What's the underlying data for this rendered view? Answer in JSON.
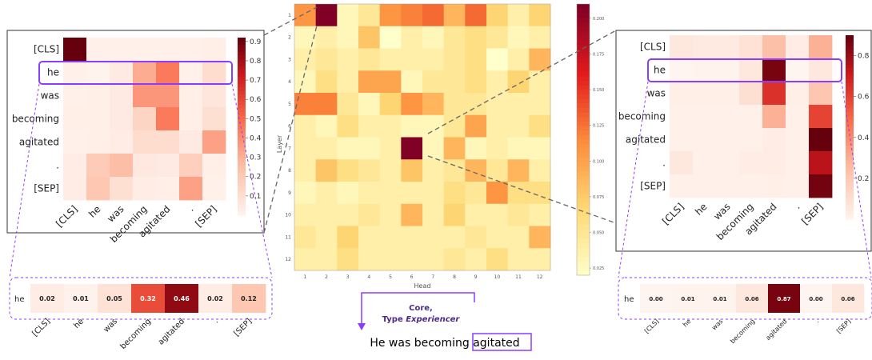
{
  "chart_data": [
    {
      "type": "heatmap",
      "xlabel": "Head",
      "ylabel": "Layer",
      "x_ticks": [
        "1",
        "2",
        "3",
        "4",
        "5",
        "6",
        "7",
        "8",
        "9",
        "10",
        "11",
        "12"
      ],
      "y_ticks": [
        "1",
        "2",
        "3",
        "4",
        "5",
        "6",
        "7",
        "8",
        "9",
        "10",
        "11",
        "12"
      ],
      "colorbar_ticks": [
        0.025,
        0.05,
        0.075,
        0.1,
        0.125,
        0.15,
        0.175,
        0.2
      ],
      "colorbar_labels": [
        "0.025",
        "0.050",
        "0.075",
        "0.100",
        "0.125",
        "0.150",
        "0.175",
        "0.200"
      ],
      "vmin": 0.02,
      "vmax": 0.21,
      "values": [
        [
          0.11,
          0.21,
          0.03,
          0.05,
          0.11,
          0.12,
          0.13,
          0.09,
          0.13,
          0.07,
          0.04,
          0.07
        ],
        [
          0.03,
          0.04,
          0.03,
          0.08,
          0.02,
          0.04,
          0.03,
          0.05,
          0.06,
          0.05,
          0.03,
          0.04
        ],
        [
          0.04,
          0.05,
          0.04,
          0.05,
          0.04,
          0.04,
          0.04,
          0.05,
          0.06,
          0.02,
          0.04,
          0.09
        ],
        [
          0.03,
          0.06,
          0.04,
          0.1,
          0.1,
          0.03,
          0.05,
          0.05,
          0.06,
          0.04,
          0.07,
          0.04
        ],
        [
          0.12,
          0.12,
          0.05,
          0.03,
          0.07,
          0.11,
          0.09,
          0.05,
          0.05,
          0.04,
          0.04,
          0.04
        ],
        [
          0.04,
          0.03,
          0.06,
          0.04,
          0.04,
          0.03,
          0.03,
          0.05,
          0.1,
          0.04,
          0.04,
          0.06
        ],
        [
          0.04,
          0.04,
          0.03,
          0.03,
          0.04,
          0.21,
          0.03,
          0.09,
          0.03,
          0.04,
          0.03,
          0.03
        ],
        [
          0.04,
          0.08,
          0.06,
          0.05,
          0.04,
          0.08,
          0.04,
          0.05,
          0.09,
          0.05,
          0.09,
          0.04
        ],
        [
          0.03,
          0.04,
          0.03,
          0.04,
          0.04,
          0.04,
          0.04,
          0.06,
          0.05,
          0.11,
          0.06,
          0.06
        ],
        [
          0.04,
          0.04,
          0.04,
          0.05,
          0.04,
          0.09,
          0.04,
          0.07,
          0.04,
          0.04,
          0.05,
          0.04
        ],
        [
          0.05,
          0.04,
          0.07,
          0.04,
          0.04,
          0.04,
          0.04,
          0.04,
          0.05,
          0.04,
          0.04,
          0.09
        ],
        [
          0.04,
          0.04,
          0.06,
          0.04,
          0.04,
          0.04,
          0.04,
          0.05,
          0.04,
          0.06,
          0.04,
          0.04
        ]
      ]
    },
    {
      "type": "heatmap",
      "tokens": [
        "[CLS]",
        "he",
        "was",
        "becoming",
        "agitated",
        ".",
        "[SEP]"
      ],
      "highlight_row": "he",
      "colorbar_ticks": [
        0.1,
        0.2,
        0.3,
        0.4,
        0.5,
        0.6,
        0.7,
        0.8,
        0.9
      ],
      "colorbar_labels": [
        "0.1",
        "0.2",
        "0.3",
        "0.4",
        "0.5",
        "0.6",
        "0.7",
        "0.8",
        "0.9"
      ],
      "vmin": 0,
      "vmax": 0.92,
      "values": [
        [
          0.95,
          0.02,
          0.02,
          0.02,
          0.02,
          0.02,
          0.03
        ],
        [
          0.02,
          0.01,
          0.05,
          0.32,
          0.46,
          0.02,
          0.12
        ],
        [
          0.02,
          0.03,
          0.05,
          0.38,
          0.38,
          0.03,
          0.07
        ],
        [
          0.03,
          0.03,
          0.05,
          0.15,
          0.46,
          0.03,
          0.1
        ],
        [
          0.02,
          0.03,
          0.04,
          0.12,
          0.12,
          0.05,
          0.35
        ],
        [
          0.04,
          0.2,
          0.26,
          0.06,
          0.05,
          0.18,
          0.03
        ],
        [
          0.04,
          0.22,
          0.1,
          0.04,
          0.03,
          0.35,
          0.02
        ]
      ]
    },
    {
      "type": "heatmap",
      "tokens": [
        "[CLS]",
        "he",
        "was",
        "becoming",
        "agitated",
        ".",
        "[SEP]"
      ],
      "highlight_row": "he",
      "colorbar_ticks": [
        0.2,
        0.4,
        0.6,
        0.8
      ],
      "colorbar_labels": [
        "0.2",
        "0.4",
        "0.6",
        "0.8"
      ],
      "vmin": 0,
      "vmax": 0.9,
      "values": [
        [
          0.06,
          0.05,
          0.05,
          0.09,
          0.25,
          0.04,
          0.3
        ],
        [
          0.0,
          0.01,
          0.01,
          0.06,
          0.87,
          0.0,
          0.06
        ],
        [
          0.03,
          0.03,
          0.03,
          0.1,
          0.65,
          0.03,
          0.22
        ],
        [
          0.02,
          0.02,
          0.02,
          0.02,
          0.3,
          0.02,
          0.6
        ],
        [
          0.02,
          0.02,
          0.02,
          0.02,
          0.04,
          0.02,
          0.9
        ],
        [
          0.06,
          0.02,
          0.02,
          0.04,
          0.04,
          0.02,
          0.75
        ],
        [
          0.02,
          0.02,
          0.02,
          0.02,
          0.03,
          0.02,
          0.88
        ]
      ]
    },
    {
      "type": "table",
      "row_label": "he",
      "tokens": [
        "[CLS]",
        "he",
        "was",
        "becoming",
        "agitated",
        ".",
        "[SEP]"
      ],
      "values": [
        0.02,
        0.01,
        0.05,
        0.32,
        0.46,
        0.02,
        0.12
      ],
      "labels": [
        "0.02",
        "0.01",
        "0.05",
        "0.32",
        "0.46",
        "0.02",
        "0.12"
      ],
      "vmax": 0.5
    },
    {
      "type": "table",
      "row_label": "he",
      "tokens": [
        "[CLS]",
        "he",
        "was",
        "becoming",
        "agitated",
        ".",
        "[SEP]"
      ],
      "values": [
        0.0,
        0.01,
        0.01,
        0.06,
        0.87,
        0.0,
        0.06
      ],
      "labels": [
        "0.00",
        "0.01",
        "0.01",
        "0.06",
        "0.87",
        "0.00",
        "0.06"
      ],
      "vmax": 0.9
    }
  ],
  "annotation": {
    "line1": "Core,",
    "line2_prefix": "Type ",
    "line2_italic": "Experiencer",
    "sentence_prefix": "He was becoming ",
    "sentence_highlight": "agitated"
  },
  "colors": {
    "accent": "#8b3dff",
    "connector": "#666666"
  }
}
